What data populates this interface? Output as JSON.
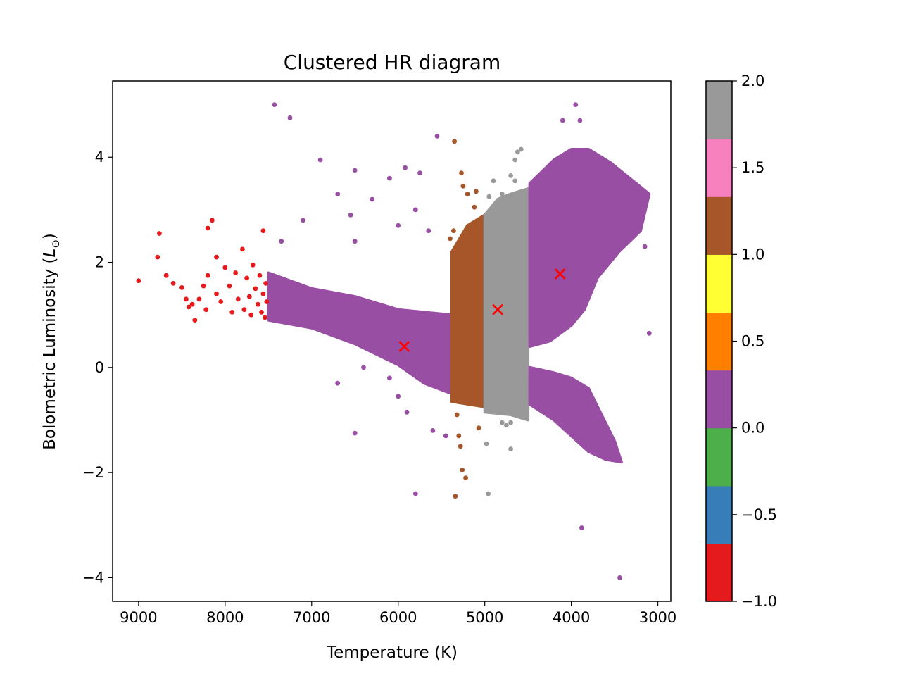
{
  "chart_data": {
    "type": "scatter",
    "title": "Clustered HR diagram",
    "xlabel": "Temperature (K)",
    "ylabel": "Bolometric Luminosity (L⊙)",
    "ylabel_main": "Bolometric Luminosity (",
    "ylabel_symbol": "L",
    "ylabel_subscript": "⊙",
    "ylabel_close": ")",
    "xlim": [
      9300,
      2850
    ],
    "ylim": [
      -4.45,
      5.45
    ],
    "x_inverted": true,
    "xticks": [
      9000,
      8000,
      7000,
      6000,
      5000,
      4000,
      3000
    ],
    "xtick_labels": [
      "9000",
      "8000",
      "7000",
      "6000",
      "5000",
      "4000",
      "3000"
    ],
    "yticks": [
      4,
      2,
      0,
      -2,
      -4
    ],
    "ytick_labels": [
      "4",
      "2",
      "0",
      "−2",
      "−4"
    ],
    "grid": false,
    "cluster_colors": {
      "-1": "#e41a1c",
      "0": "#984ea3",
      "1": "#a65628",
      "2": "#999999"
    },
    "colorbar": {
      "range": [
        -1.0,
        2.0
      ],
      "colors": [
        "#e41a1c",
        "#377eb8",
        "#4daf4a",
        "#984ea3",
        "#ff7f00",
        "#ffff33",
        "#a65628",
        "#f781bf",
        "#999999"
      ],
      "ticks": [
        2.0,
        1.5,
        1.0,
        0.5,
        0.0,
        -0.5,
        -1.0
      ],
      "tick_labels": [
        "2.0",
        "1.5",
        "1.0",
        "0.5",
        "0.0",
        "−0.5",
        "−1.0"
      ]
    },
    "dense_regions": [
      {
        "label": 0,
        "polygon": [
          [
            7500,
            1.8
          ],
          [
            7000,
            1.5
          ],
          [
            6500,
            1.35
          ],
          [
            6000,
            1.1
          ],
          [
            5700,
            1.05
          ],
          [
            5380,
            1.0
          ],
          [
            5380,
            -0.5
          ],
          [
            5700,
            -0.3
          ],
          [
            6000,
            0.05
          ],
          [
            6500,
            0.45
          ],
          [
            7000,
            0.75
          ],
          [
            7500,
            0.9
          ]
        ]
      },
      {
        "label": 1,
        "polygon": [
          [
            5380,
            2.2
          ],
          [
            5200,
            2.7
          ],
          [
            5000,
            2.9
          ],
          [
            5000,
            -0.75
          ],
          [
            5380,
            -0.65
          ],
          [
            5380,
            0.8
          ]
        ]
      },
      {
        "label": 2,
        "polygon": [
          [
            5000,
            2.9
          ],
          [
            4850,
            3.2
          ],
          [
            4700,
            3.3
          ],
          [
            4500,
            3.4
          ],
          [
            4500,
            -1.0
          ],
          [
            4700,
            -0.9
          ],
          [
            5000,
            -0.85
          ]
        ]
      },
      {
        "label": 0,
        "polygon": [
          [
            4480,
            3.5
          ],
          [
            4200,
            3.95
          ],
          [
            4000,
            4.15
          ],
          [
            3800,
            4.15
          ],
          [
            3550,
            3.9
          ],
          [
            3250,
            3.5
          ],
          [
            3100,
            3.3
          ],
          [
            3200,
            2.6
          ],
          [
            3450,
            2.2
          ],
          [
            3700,
            1.7
          ],
          [
            3850,
            1.1
          ],
          [
            4000,
            0.8
          ],
          [
            4250,
            0.5
          ],
          [
            4480,
            0.4
          ]
        ]
      },
      {
        "label": 0,
        "polygon": [
          [
            4480,
            0.0
          ],
          [
            4200,
            -0.1
          ],
          [
            4000,
            -0.2
          ],
          [
            3800,
            -0.4
          ],
          [
            3650,
            -0.9
          ],
          [
            3500,
            -1.4
          ],
          [
            3420,
            -1.8
          ],
          [
            3600,
            -1.75
          ],
          [
            3800,
            -1.6
          ],
          [
            4000,
            -1.3
          ],
          [
            4200,
            -1.0
          ],
          [
            4480,
            -0.7
          ]
        ]
      }
    ],
    "series": [
      {
        "label": -1,
        "points": [
          [
            9000,
            1.65
          ],
          [
            8760,
            2.55
          ],
          [
            8780,
            2.1
          ],
          [
            8680,
            1.75
          ],
          [
            8600,
            1.6
          ],
          [
            8500,
            1.52
          ],
          [
            8450,
            1.3
          ],
          [
            8420,
            1.15
          ],
          [
            8380,
            1.2
          ],
          [
            8350,
            0.9
          ],
          [
            8300,
            1.3
          ],
          [
            8250,
            1.55
          ],
          [
            8220,
            1.1
          ],
          [
            8200,
            1.75
          ],
          [
            8200,
            2.65
          ],
          [
            8150,
            2.8
          ],
          [
            8100,
            2.1
          ],
          [
            8100,
            1.4
          ],
          [
            8050,
            1.25
          ],
          [
            8000,
            1.9
          ],
          [
            7950,
            1.55
          ],
          [
            7920,
            1.05
          ],
          [
            7880,
            1.8
          ],
          [
            7850,
            1.3
          ],
          [
            7800,
            2.25
          ],
          [
            7780,
            1.1
          ],
          [
            7750,
            1.7
          ],
          [
            7720,
            1.35
          ],
          [
            7700,
            1.0
          ],
          [
            7680,
            1.95
          ],
          [
            7650,
            1.5
          ],
          [
            7620,
            1.2
          ],
          [
            7600,
            1.75
          ],
          [
            7580,
            1.05
          ],
          [
            7560,
            2.6
          ],
          [
            7560,
            1.4
          ],
          [
            7540,
            0.95
          ],
          [
            7530,
            1.6
          ],
          [
            7520,
            1.25
          ]
        ]
      },
      {
        "label": 0,
        "points": [
          [
            7430,
            5.0
          ],
          [
            7250,
            4.75
          ],
          [
            6900,
            3.95
          ],
          [
            6500,
            3.75
          ],
          [
            6700,
            3.3
          ],
          [
            6550,
            2.9
          ],
          [
            6300,
            3.2
          ],
          [
            6100,
            3.6
          ],
          [
            5920,
            3.8
          ],
          [
            5750,
            3.7
          ],
          [
            5550,
            4.4
          ],
          [
            5800,
            3.0
          ],
          [
            5650,
            2.6
          ],
          [
            6000,
            2.7
          ],
          [
            6500,
            2.4
          ],
          [
            7100,
            2.8
          ],
          [
            7350,
            2.4
          ],
          [
            6400,
            0.0
          ],
          [
            6700,
            -0.3
          ],
          [
            6100,
            -0.2
          ],
          [
            6000,
            -0.55
          ],
          [
            5900,
            -0.85
          ],
          [
            6500,
            -1.25
          ],
          [
            5600,
            -1.2
          ],
          [
            5450,
            -1.3
          ],
          [
            5800,
            -2.4
          ],
          [
            3880,
            -3.05
          ],
          [
            3440,
            -4.0
          ],
          [
            3100,
            0.65
          ],
          [
            3150,
            2.3
          ],
          [
            3300,
            3.3
          ],
          [
            4100,
            4.7
          ],
          [
            3950,
            5.0
          ],
          [
            3900,
            4.7
          ]
        ]
      },
      {
        "label": 1,
        "points": [
          [
            5350,
            4.3
          ],
          [
            5270,
            3.7
          ],
          [
            5250,
            3.45
          ],
          [
            5200,
            3.3
          ],
          [
            5100,
            3.35
          ],
          [
            5120,
            3.05
          ],
          [
            5360,
            2.6
          ],
          [
            5400,
            2.45
          ],
          [
            5320,
            -0.9
          ],
          [
            5300,
            -1.3
          ],
          [
            5280,
            -1.5
          ],
          [
            5070,
            -1.15
          ],
          [
            5260,
            -1.95
          ],
          [
            5220,
            -2.1
          ],
          [
            5340,
            -2.45
          ]
        ]
      },
      {
        "label": 2,
        "points": [
          [
            4620,
            4.1
          ],
          [
            4580,
            4.15
          ],
          [
            4650,
            3.95
          ],
          [
            4700,
            3.65
          ],
          [
            4650,
            3.55
          ],
          [
            4800,
            3.3
          ],
          [
            4900,
            3.55
          ],
          [
            4950,
            3.25
          ],
          [
            4980,
            -1.45
          ],
          [
            4800,
            -1.05
          ],
          [
            4750,
            -1.1
          ],
          [
            4700,
            -1.55
          ],
          [
            4700,
            -1.05
          ],
          [
            4960,
            -2.4
          ]
        ]
      }
    ],
    "centroids": [
      {
        "x": 5930,
        "y": 0.4
      },
      {
        "x": 4850,
        "y": 1.1
      },
      {
        "x": 4130,
        "y": 1.78
      }
    ],
    "centroid_marker_color": "#ff0000"
  }
}
